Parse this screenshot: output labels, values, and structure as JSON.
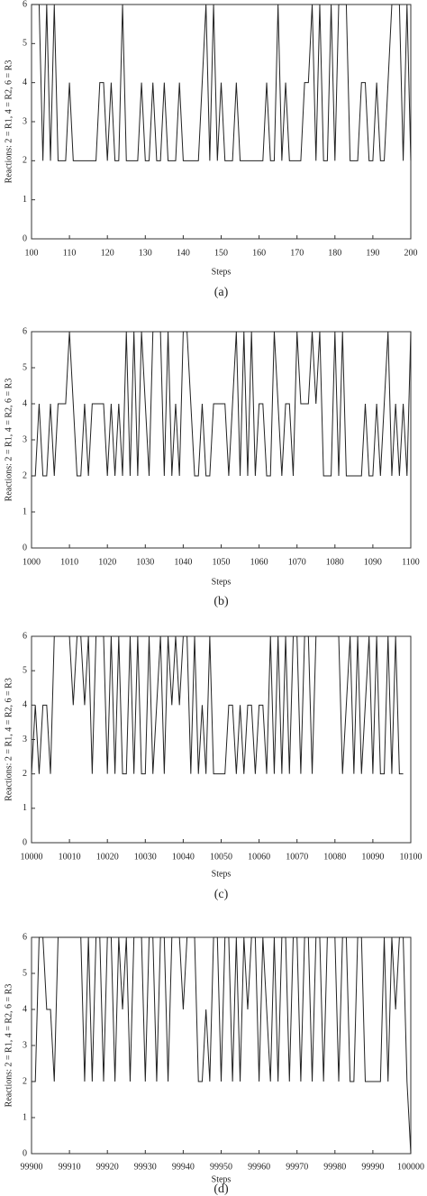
{
  "chart_data": [
    {
      "type": "line",
      "caption": "(a)",
      "xlabel": "Steps",
      "ylabel": "Reactions: 2 = R1, 4 = R2, 6 = R3",
      "xlim": [
        100,
        200
      ],
      "xticks": [
        100,
        110,
        120,
        130,
        140,
        150,
        160,
        170,
        180,
        190,
        200
      ],
      "ylim": [
        0,
        6
      ],
      "yticks": [
        0,
        1,
        2,
        3,
        4,
        5,
        6
      ],
      "x": [
        100,
        101,
        102,
        103,
        104,
        105,
        106,
        107,
        108,
        109,
        110,
        111,
        112,
        113,
        114,
        115,
        116,
        117,
        118,
        119,
        120,
        121,
        122,
        123,
        124,
        125,
        126,
        127,
        128,
        129,
        130,
        131,
        132,
        133,
        134,
        135,
        136,
        137,
        138,
        139,
        140,
        141,
        142,
        143,
        144,
        145,
        146,
        147,
        148,
        149,
        150,
        151,
        152,
        153,
        154,
        155,
        156,
        157,
        158,
        159,
        160,
        161,
        162,
        163,
        164,
        165,
        166,
        167,
        168,
        169,
        170,
        171,
        172,
        173,
        174,
        175,
        176,
        177,
        178,
        179,
        180,
        181,
        182,
        183,
        184,
        185,
        186,
        187,
        188,
        189,
        190,
        191,
        192,
        193,
        194,
        195,
        196,
        197,
        198,
        199,
        200
      ],
      "series": [
        {
          "color": "#222222",
          "values": [
            6,
            6,
            6,
            2,
            6,
            2,
            6,
            2,
            2,
            2,
            4,
            2,
            2,
            2,
            2,
            2,
            2,
            2,
            4,
            4,
            2,
            4,
            2,
            2,
            6,
            2,
            2,
            2,
            2,
            4,
            2,
            2,
            4,
            2,
            2,
            4,
            2,
            2,
            2,
            4,
            2,
            2,
            2,
            2,
            2,
            4,
            6,
            2,
            6,
            2,
            4,
            2,
            2,
            2,
            4,
            2,
            2,
            2,
            2,
            2,
            2,
            2,
            4,
            2,
            2,
            6,
            2,
            4,
            2,
            2,
            2,
            2,
            4,
            4,
            6,
            2,
            6,
            2,
            2,
            6,
            2,
            6,
            6,
            6,
            2,
            2,
            2,
            4,
            4,
            2,
            2,
            4,
            2,
            2,
            4,
            6,
            6,
            6,
            2,
            6,
            2
          ]
        }
      ]
    },
    {
      "type": "line",
      "caption": "(b)",
      "xlabel": "Steps",
      "ylabel": "Reactions: 2 = R1, 4 = R2, 6 = R3",
      "xlim": [
        1000,
        1100
      ],
      "xticks": [
        1000,
        1010,
        1020,
        1030,
        1040,
        1050,
        1060,
        1070,
        1080,
        1090,
        1100
      ],
      "ylim": [
        0,
        6
      ],
      "yticks": [
        0,
        1,
        2,
        3,
        4,
        5,
        6
      ],
      "x": [
        1000,
        1001,
        1002,
        1003,
        1004,
        1005,
        1006,
        1007,
        1008,
        1009,
        1010,
        1011,
        1012,
        1013,
        1014,
        1015,
        1016,
        1017,
        1018,
        1019,
        1020,
        1021,
        1022,
        1023,
        1024,
        1025,
        1026,
        1027,
        1028,
        1029,
        1030,
        1031,
        1032,
        1033,
        1034,
        1035,
        1036,
        1037,
        1038,
        1039,
        1040,
        1041,
        1042,
        1043,
        1044,
        1045,
        1046,
        1047,
        1048,
        1049,
        1050,
        1051,
        1052,
        1053,
        1054,
        1055,
        1056,
        1057,
        1058,
        1059,
        1060,
        1061,
        1062,
        1063,
        1064,
        1065,
        1066,
        1067,
        1068,
        1069,
        1070,
        1071,
        1072,
        1073,
        1074,
        1075,
        1076,
        1077,
        1078,
        1079,
        1080,
        1081,
        1082,
        1083,
        1084,
        1085,
        1086,
        1087,
        1088,
        1089,
        1090,
        1091,
        1092,
        1093,
        1094,
        1095,
        1096,
        1097,
        1098,
        1099,
        1100
      ],
      "series": [
        {
          "color": "#222222",
          "values": [
            2,
            2,
            4,
            2,
            2,
            4,
            2,
            4,
            4,
            4,
            6,
            4,
            2,
            2,
            4,
            2,
            4,
            4,
            4,
            4,
            2,
            4,
            2,
            4,
            2,
            6,
            2,
            6,
            2,
            6,
            4,
            2,
            6,
            6,
            6,
            2,
            6,
            2,
            4,
            2,
            6,
            6,
            4,
            2,
            2,
            4,
            2,
            2,
            4,
            4,
            4,
            4,
            2,
            4,
            6,
            2,
            6,
            2,
            6,
            2,
            4,
            4,
            2,
            2,
            6,
            4,
            2,
            4,
            4,
            2,
            6,
            4,
            4,
            4,
            6,
            4,
            6,
            2,
            2,
            2,
            6,
            2,
            6,
            2,
            2,
            2,
            2,
            2,
            4,
            2,
            2,
            4,
            2,
            4,
            6,
            2,
            4,
            2,
            4,
            2,
            6
          ]
        }
      ]
    },
    {
      "type": "line",
      "caption": "(c)",
      "xlabel": "Steps",
      "ylabel": "Reactions: 2 = R1, 4 = R2, 6 = R3",
      "xlim": [
        10000,
        10100
      ],
      "xticks": [
        10000,
        10010,
        10020,
        10030,
        10040,
        10050,
        10060,
        10070,
        10080,
        10090,
        10100
      ],
      "ylim": [
        0,
        6
      ],
      "yticks": [
        0,
        1,
        2,
        3,
        4,
        5,
        6
      ],
      "x": [
        10000,
        10001,
        10002,
        10003,
        10004,
        10005,
        10006,
        10007,
        10008,
        10009,
        10010,
        10011,
        10012,
        10013,
        10014,
        10015,
        10016,
        10017,
        10018,
        10019,
        10020,
        10021,
        10022,
        10023,
        10024,
        10025,
        10026,
        10027,
        10028,
        10029,
        10030,
        10031,
        10032,
        10033,
        10034,
        10035,
        10036,
        10037,
        10038,
        10039,
        10040,
        10041,
        10042,
        10043,
        10044,
        10045,
        10046,
        10047,
        10048,
        10049,
        10050,
        10051,
        10052,
        10053,
        10054,
        10055,
        10056,
        10057,
        10058,
        10059,
        10060,
        10061,
        10062,
        10063,
        10064,
        10065,
        10066,
        10067,
        10068,
        10069,
        10070,
        10071,
        10072,
        10073,
        10074,
        10075,
        10076,
        10077,
        10078,
        10079,
        10080,
        10081,
        10082,
        10083,
        10084,
        10085,
        10086,
        10087,
        10088,
        10089,
        10090,
        10091,
        10092,
        10093,
        10094,
        10095,
        10096,
        10097,
        10098
      ],
      "series": [
        {
          "color": "#222222",
          "values": [
            2,
            4,
            2,
            4,
            4,
            2,
            6,
            6,
            6,
            6,
            6,
            4,
            6,
            6,
            4,
            6,
            2,
            6,
            6,
            6,
            2,
            6,
            2,
            6,
            2,
            2,
            6,
            2,
            6,
            2,
            2,
            6,
            2,
            4,
            6,
            2,
            6,
            4,
            6,
            4,
            6,
            6,
            2,
            6,
            2,
            4,
            2,
            6,
            2,
            2,
            2,
            2,
            4,
            4,
            2,
            4,
            2,
            4,
            4,
            2,
            4,
            4,
            2,
            6,
            2,
            6,
            2,
            6,
            2,
            6,
            6,
            2,
            6,
            6,
            2,
            6,
            6,
            6,
            6,
            6,
            6,
            6,
            2,
            4,
            6,
            2,
            6,
            2,
            4,
            6,
            2,
            6,
            2,
            2,
            6,
            2,
            6,
            2,
            2
          ]
        }
      ]
    },
    {
      "type": "line",
      "caption": "(d)",
      "xlabel": "Steps",
      "ylabel": "Reactions: 2 = R1, 4 = R2, 6 = R3",
      "xlim": [
        99900,
        100000
      ],
      "xticks": [
        99900,
        99910,
        99920,
        99930,
        99940,
        99950,
        99960,
        99970,
        99980,
        99990,
        100000
      ],
      "ylim": [
        0,
        6
      ],
      "yticks": [
        0,
        1,
        2,
        3,
        4,
        5,
        6
      ],
      "x": [
        99900,
        99901,
        99902,
        99903,
        99904,
        99905,
        99906,
        99907,
        99908,
        99909,
        99910,
        99911,
        99912,
        99913,
        99914,
        99915,
        99916,
        99917,
        99918,
        99919,
        99920,
        99921,
        99922,
        99923,
        99924,
        99925,
        99926,
        99927,
        99928,
        99929,
        99930,
        99931,
        99932,
        99933,
        99934,
        99935,
        99936,
        99937,
        99938,
        99939,
        99940,
        99941,
        99942,
        99943,
        99944,
        99945,
        99946,
        99947,
        99948,
        99949,
        99950,
        99951,
        99952,
        99953,
        99954,
        99955,
        99956,
        99957,
        99958,
        99959,
        99960,
        99961,
        99962,
        99963,
        99964,
        99965,
        99966,
        99967,
        99968,
        99969,
        99970,
        99971,
        99972,
        99973,
        99974,
        99975,
        99976,
        99977,
        99978,
        99979,
        99980,
        99981,
        99982,
        99983,
        99984,
        99985,
        99986,
        99987,
        99988,
        99989,
        99990,
        99991,
        99992,
        99993,
        99994,
        99995,
        99996,
        99997,
        99998,
        99999,
        100000
      ],
      "series": [
        {
          "color": "#222222",
          "values": [
            2,
            2,
            6,
            6,
            4,
            4,
            2,
            6,
            6,
            6,
            6,
            6,
            6,
            6,
            2,
            6,
            2,
            6,
            6,
            2,
            6,
            6,
            2,
            6,
            4,
            6,
            2,
            6,
            6,
            6,
            2,
            6,
            6,
            2,
            6,
            6,
            2,
            6,
            6,
            6,
            4,
            6,
            6,
            6,
            2,
            2,
            4,
            2,
            6,
            6,
            2,
            6,
            6,
            2,
            6,
            2,
            6,
            4,
            6,
            6,
            2,
            6,
            4,
            2,
            6,
            2,
            6,
            6,
            2,
            6,
            6,
            2,
            6,
            6,
            2,
            6,
            6,
            2,
            6,
            6,
            6,
            2,
            6,
            6,
            2,
            2,
            6,
            6,
            2,
            2,
            2,
            2,
            2,
            6,
            2,
            6,
            4,
            6,
            6,
            2,
            0
          ]
        }
      ]
    }
  ]
}
